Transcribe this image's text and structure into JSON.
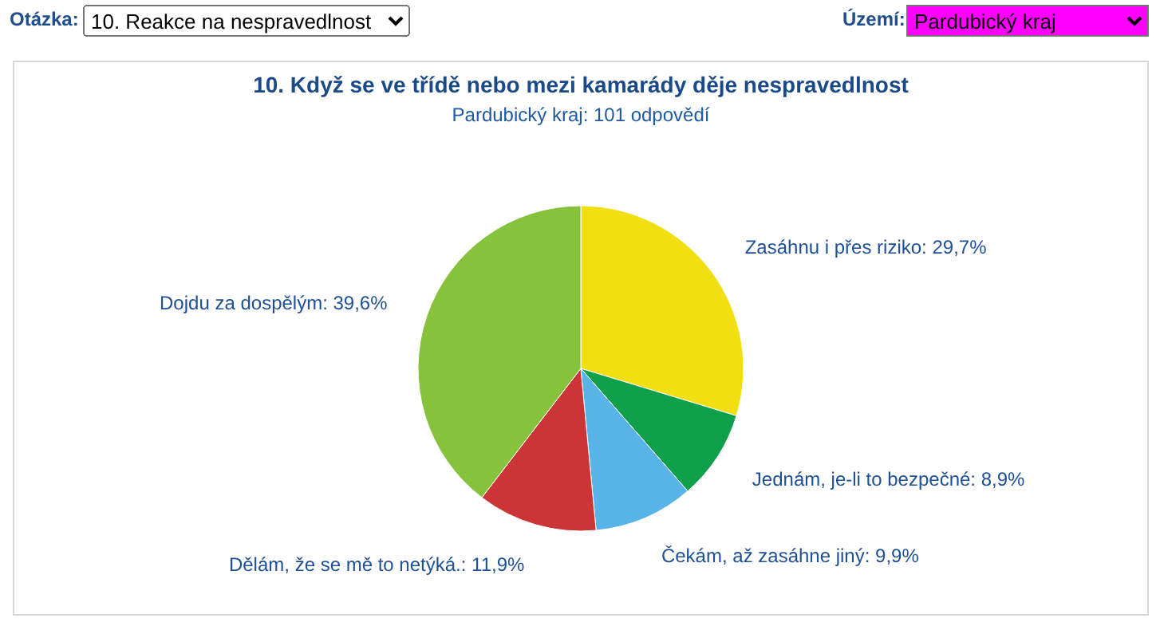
{
  "chart_data": {
    "type": "pie",
    "title": "10. Když se ve třídě nebo mezi kamarády děje nespravedlnost",
    "subtitle": "Pardubický kraj: 101 odpovědí",
    "categories": [
      "Zasáhnu i přes riziko",
      "Jednám, je-li to bezpečné",
      "Čekám, až zasáhne jiný",
      "Dělám, že se mě to netýká.",
      "Dojdu za dospělým"
    ],
    "values": [
      29.7,
      8.9,
      9.9,
      11.9,
      39.6
    ],
    "value_labels": [
      "29,7%",
      "8,9%",
      "9,9%",
      "11,9%",
      "39,6%"
    ],
    "colors": [
      "#f2df12",
      "#10a04c",
      "#58b4e6",
      "#cc3535",
      "#86c23c"
    ],
    "annotations": [
      "Otázka:",
      "10. Reakce na nespravedlnost",
      "Území:",
      "Pardubický kraj"
    ]
  }
}
